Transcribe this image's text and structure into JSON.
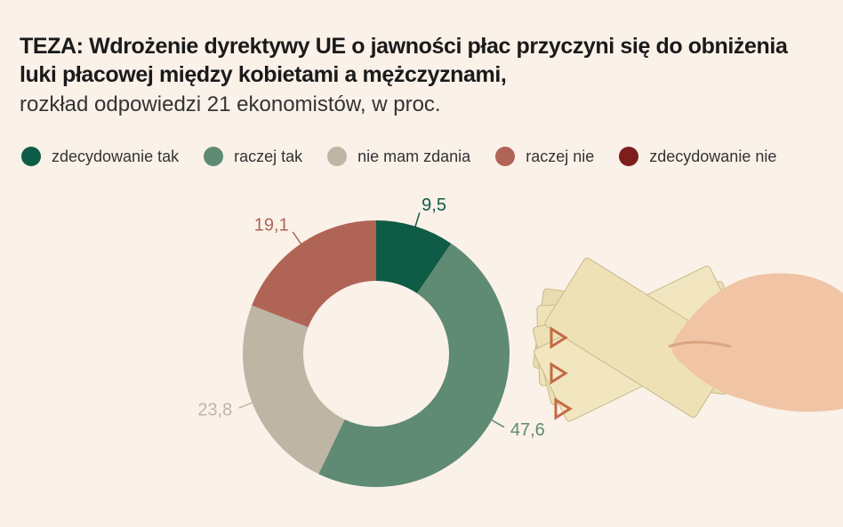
{
  "chart_data": {
    "type": "donut",
    "title": "TEZA:  Wdrożenie dyrektywy UE o jawności płac przyczyni się do obniżenia luki płacowej między kobietami a mężczyznami,",
    "subtitle": "rozkład odpowiedzi 21 ekonomistów, w proc.",
    "categories": [
      "zdecydowanie tak",
      "raczej tak",
      "nie mam zdania",
      "raczej nie",
      "zdecydowanie nie"
    ],
    "values": [
      9.5,
      47.6,
      23.8,
      19.1,
      0
    ],
    "value_labels": [
      "9,5",
      "47,6",
      "23,8",
      "19,1",
      null
    ],
    "colors": [
      "#0e5c45",
      "#5f8a73",
      "#beb6a4",
      "#b06456",
      "#7d1e1c"
    ]
  }
}
